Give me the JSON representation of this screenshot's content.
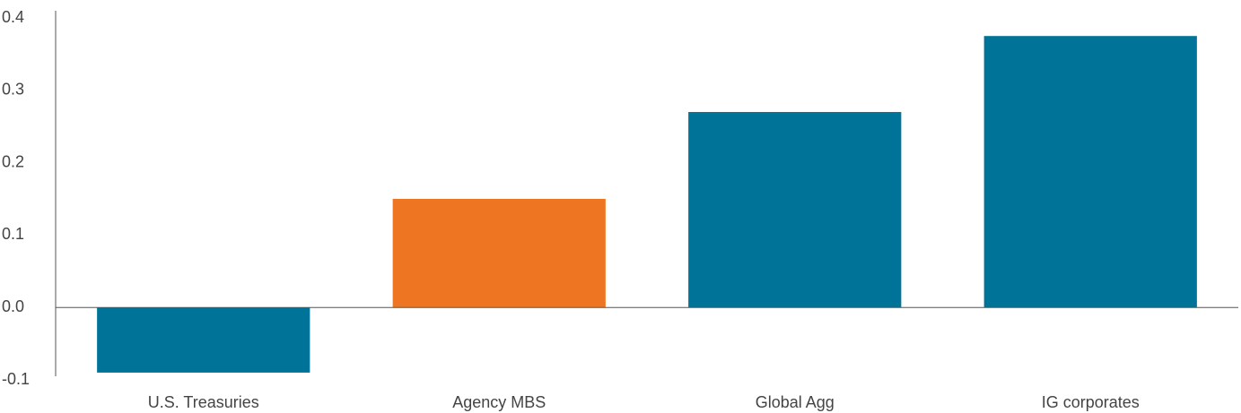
{
  "chart_data": {
    "type": "bar",
    "categories": [
      "U.S. Treasuries",
      "Agency MBS",
      "Global Agg",
      "IG corporates"
    ],
    "values": [
      -0.09,
      0.15,
      0.27,
      0.375
    ],
    "colors": [
      "#007398",
      "#ee7623",
      "#007398",
      "#007398"
    ],
    "ylim": [
      -0.1,
      0.4
    ],
    "yticks": [
      -0.1,
      {
        "value": 0,
        "label": "0.0"
      },
      0.1,
      0.2,
      0.3,
      0.4
    ],
    "grid": false
  }
}
